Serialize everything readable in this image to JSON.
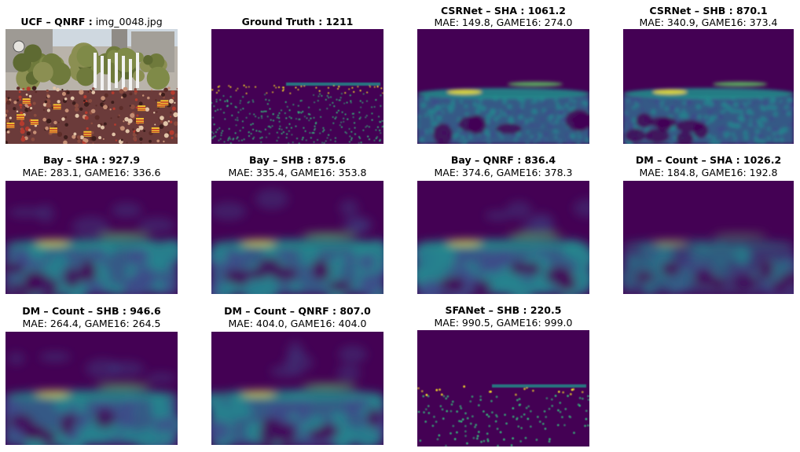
{
  "colors": {
    "viridis_dark": "#440154",
    "viridis_mid": "#21918c",
    "viridis_bright": "#fde725"
  },
  "panels": [
    {
      "title_bold": "UCF – QNRF :",
      "title_plain": " img_0048.jpg",
      "subtitle": "",
      "kind": "photo"
    },
    {
      "title_bold": "Ground Truth : 1211",
      "title_plain": "",
      "subtitle": "",
      "kind": "gt"
    },
    {
      "title_bold": "CSRNet – SHA : 1061.2",
      "title_plain": "",
      "subtitle": "MAE: 149.8, GAME16: 274.0",
      "kind": "dense"
    },
    {
      "title_bold": "CSRNet – SHB : 870.1",
      "title_plain": "",
      "subtitle": "MAE: 340.9, GAME16: 373.4",
      "kind": "dense"
    },
    {
      "title_bold": "Bay – SHA : 927.9",
      "title_plain": "",
      "subtitle": "MAE: 283.1, GAME16: 336.6",
      "kind": "blurry"
    },
    {
      "title_bold": "Bay – SHB : 875.6",
      "title_plain": "",
      "subtitle": "MAE: 335.4, GAME16: 353.8",
      "kind": "blurry"
    },
    {
      "title_bold": "Bay – QNRF : 836.4",
      "title_plain": "",
      "subtitle": "MAE: 374.6, GAME16: 378.3",
      "kind": "blurry"
    },
    {
      "title_bold": "DM – Count – SHA : 1026.2",
      "title_plain": "",
      "subtitle": "MAE: 184.8, GAME16: 192.8",
      "kind": "faint"
    },
    {
      "title_bold": "DM – Count – SHB : 946.6",
      "title_plain": "",
      "subtitle": "MAE: 264.4, GAME16: 264.5",
      "kind": "blurry"
    },
    {
      "title_bold": "DM – Count – QNRF : 807.0",
      "title_plain": "",
      "subtitle": "MAE: 404.0, GAME16: 404.0",
      "kind": "blurry"
    },
    {
      "title_bold": "SFANet – SHB : 220.5",
      "title_plain": "",
      "subtitle": "MAE: 990.5, GAME16: 999.0",
      "kind": "sparse"
    }
  ]
}
